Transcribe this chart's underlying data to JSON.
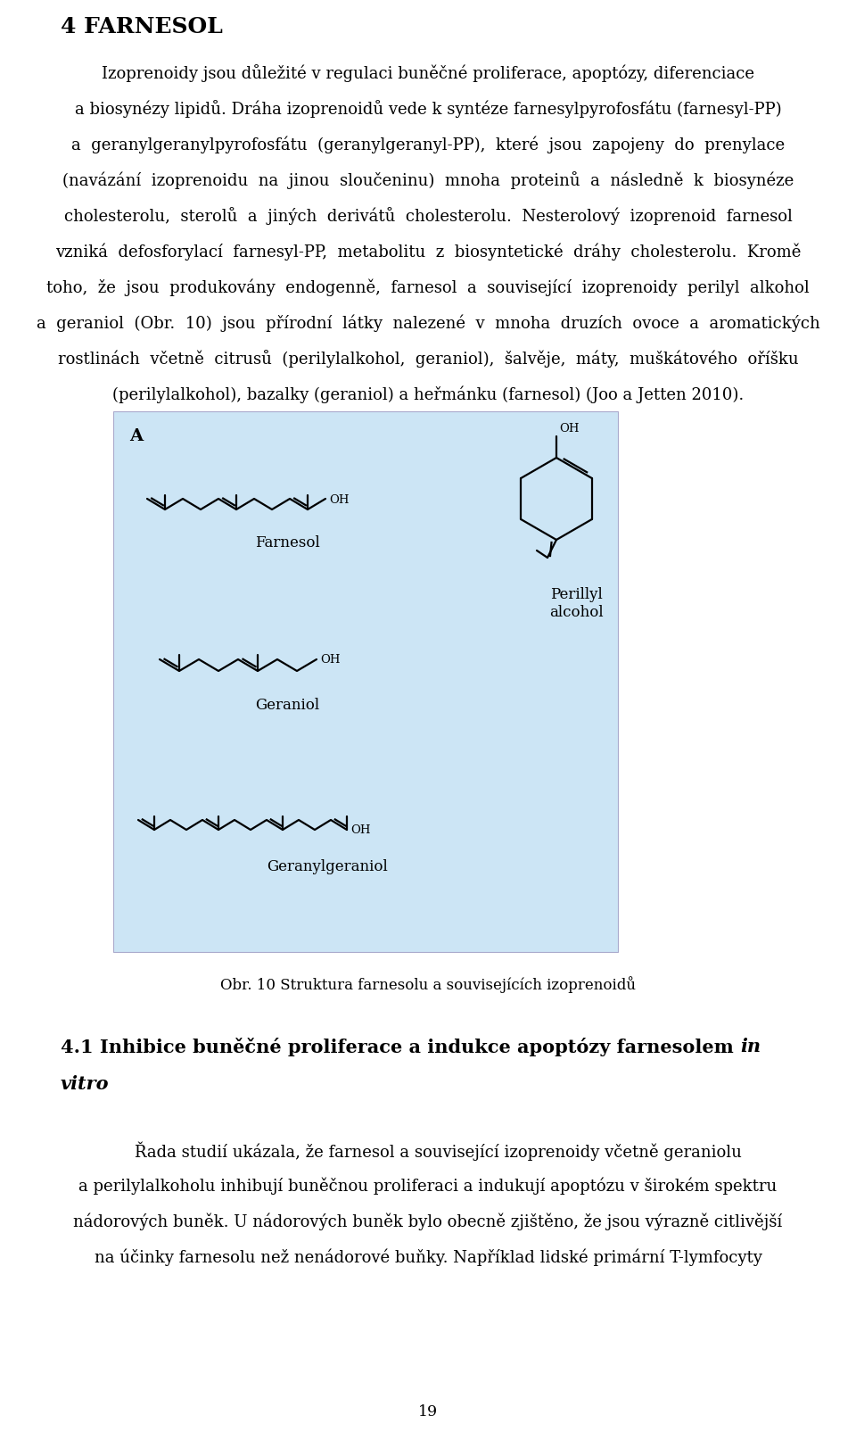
{
  "bg_color": "#ffffff",
  "page_width": 9.6,
  "page_height": 16.06,
  "title": "4 FARNESOL",
  "para1_lines": [
    "Izoprenoidy jsou důležité v regulaci buněčné proliferace, apoptózy, diferenciace",
    "a biosynézy lipidů. Dráha izoprenoidů vede k syntéze farnesylpyrofosfátu (farnesyl-PP)",
    "a  geranylgeranylpyrofosfátu  (geranylgeranyl-PP),  které  jsou  zapojeny  do  prenylace",
    "(navázání  izoprenoidu  na  jinou  sloučeninu)  mnoha  proteinů  a  následně  k  biosynéze",
    "cholesterolu,  sterolů  a  jiných  derivátů  cholesterolu.  Nesterolový  izoprenoid  farnesol",
    "vzniká  defosforylací  farnesyl-PP,  metabolitu  z  biosyntetické  dráhy  cholesterolu.  Kromě",
    "toho,  že  jsou  produkovány  endogenně,  farnesol  a  související  izoprenoidy  perilyl  alkohol",
    "a  geraniol  (Obr.  10)  jsou  přírodní  látky  nalezené  v  mnoha  druzích  ovoce  a  aromatických",
    "rostlinách  včetně  citrusů  (perilylalkohol,  geraniol),  šalvěje,  máty,  muškátového  oříšku",
    "(perilylalkohol), bazalky (geraniol) a heřmánku (farnesol) (Joo a Jetten 2010)."
  ],
  "fig_caption": "Obr. 10 Struktura farnesolu a souvisejících izoprenoidů",
  "section_title_normal": "4.1 Inhibice buněčné proliferace a indukce apoptózy farnesolem ",
  "section_title_italic": "in",
  "section_line2_italic": "vitro",
  "para2_lines": [
    "    Řada studií ukázala, že farnesol a související izoprenoidy včetně geraniolu",
    "a perilylalkoholu inhibují buněčnou proliferaci a indukují apoptózu v širokém spektru",
    "nádorových buněk. U nádorových buněk bylo obecně zjištěno, že jsou výrazně citlivější",
    "na účinky farnesolu než nenádorové buňky. Například lidské primární T-lymfocyty"
  ],
  "page_number": "19",
  "fig_bg_color": "#cce5f5",
  "text_color": "#000000"
}
